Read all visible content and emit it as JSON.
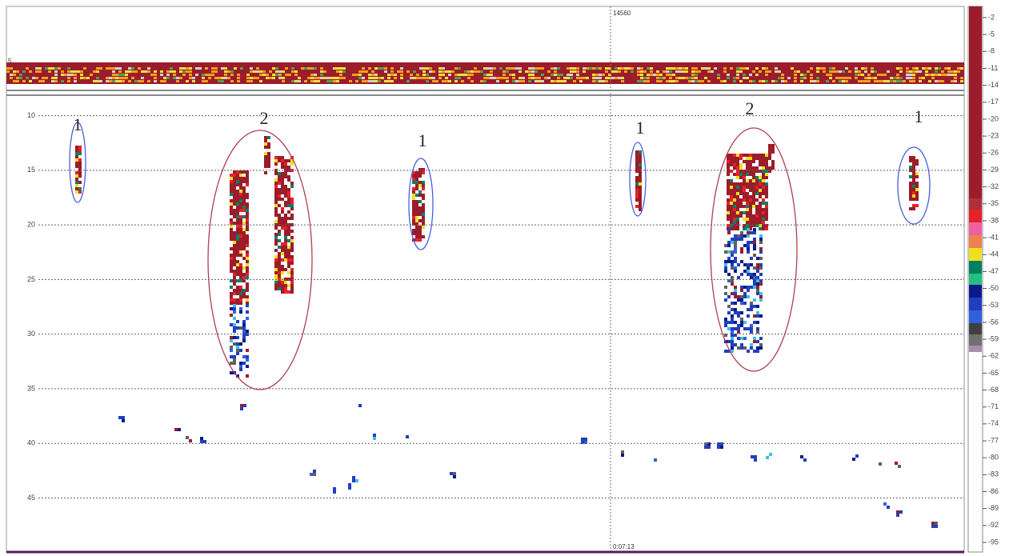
{
  "echogram": {
    "ping_label": "14560",
    "time_label": "0:07:13",
    "top_panel_label": "5",
    "depth_ticks": [
      10,
      15,
      20,
      25,
      30,
      35,
      40,
      45
    ],
    "depth_lim": [
      8.2,
      49.8
    ],
    "color_scale_ticks": [
      -2,
      -5,
      -8,
      -11,
      -14,
      -17,
      -20,
      -23,
      -26,
      -29,
      -32,
      -35,
      -38,
      -41,
      -44,
      -47,
      -50,
      -53,
      -56,
      -59,
      -62,
      -65,
      -68,
      -71,
      -74,
      -77,
      -80,
      -83,
      -86,
      -89,
      -92,
      -95
    ],
    "annotations": [
      "1",
      "2",
      "1",
      "1",
      "2",
      "1"
    ]
  }
}
